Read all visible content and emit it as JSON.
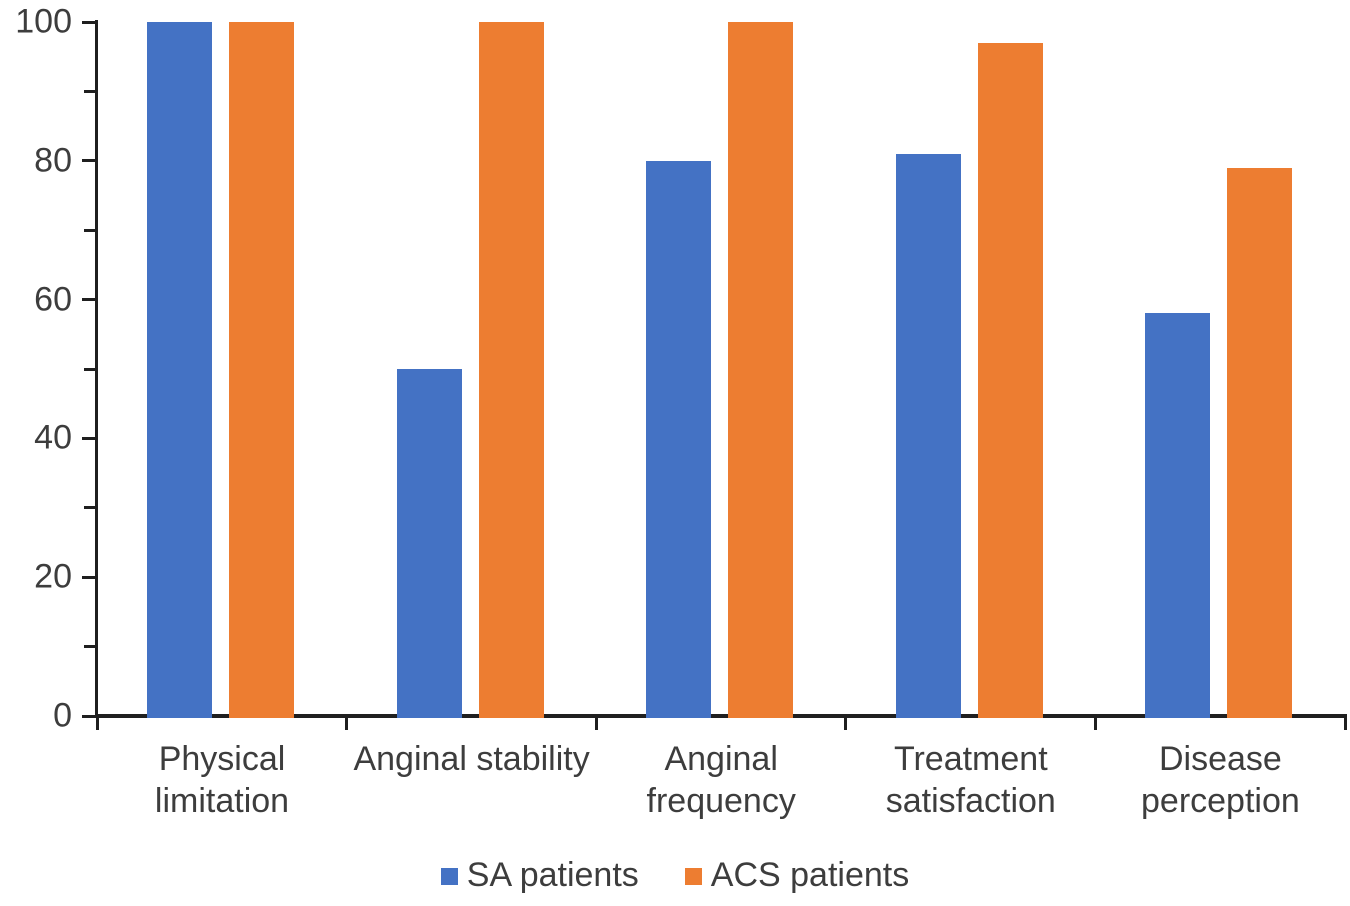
{
  "chart_data": {
    "type": "bar",
    "title": "",
    "xlabel": "",
    "ylabel": "",
    "categories": [
      "Physical limitation",
      "Anginal stability",
      "Anginal frequency",
      "Treatment satisfaction",
      "Disease perception"
    ],
    "series": [
      {
        "name": "SA patients",
        "color": "#4472C4",
        "values": [
          100,
          50,
          80,
          81,
          58
        ]
      },
      {
        "name": "ACS patients",
        "color": "#ED7D31",
        "values": [
          100,
          100,
          100,
          97,
          79
        ]
      }
    ],
    "ylim": [
      0,
      100
    ],
    "y_major_ticks": [
      0,
      20,
      40,
      60,
      80,
      100
    ],
    "y_minor_ticks": [
      10,
      30,
      50,
      70,
      90
    ],
    "grid": "off",
    "legend_position": "bottom"
  },
  "colors": {
    "axis": "#1f1f1f",
    "label_text": "#3d3d3d",
    "background": "#ffffff",
    "series_blue": "#4472C4",
    "series_orange": "#ED7D31"
  }
}
